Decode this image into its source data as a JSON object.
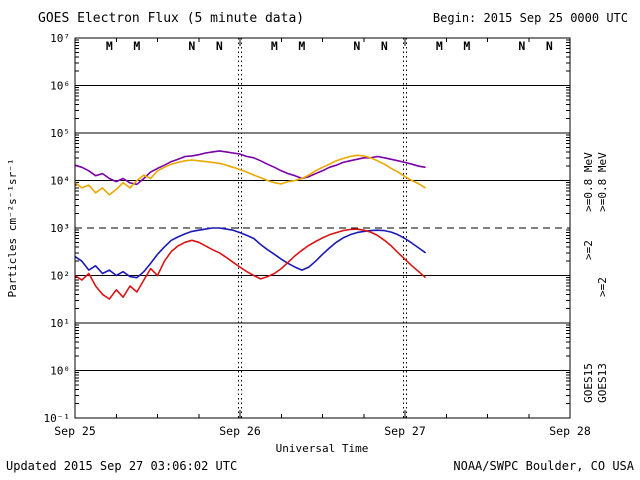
{
  "header": {
    "title": "GOES Electron Flux (5 minute data)",
    "begin_label": "Begin: 2015 Sep 25 0000 UTC"
  },
  "footer": {
    "updated": "Updated 2015 Sep 27 03:06:02 UTC",
    "source": "NOAA/SWPC Boulder, CO USA"
  },
  "chart_data": {
    "type": "line",
    "title": "GOES Electron Flux (5 minute data)",
    "xlabel": "Universal Time",
    "ylabel": "Particles cm⁻²s⁻¹sr⁻¹",
    "y_scale": "log",
    "ylim": [
      0.1,
      10000000
    ],
    "x_range_hours": [
      0,
      72
    ],
    "x_tick_hours": [
      0,
      24,
      48,
      72
    ],
    "x_tick_labels": [
      "Sep 25",
      "Sep 26",
      "Sep 27",
      "Sep 28"
    ],
    "y_tick_exponents": [
      -1,
      0,
      1,
      2,
      3,
      4,
      5,
      6,
      7
    ],
    "y_tick_labels": [
      "10⁻¹",
      "10⁰",
      "10¹",
      "10²",
      "10³",
      "10⁴",
      "10⁵",
      "10⁶",
      "10⁷"
    ],
    "threshold_line": {
      "value": 1000,
      "style": "dashed"
    },
    "day_boundary_lines_hours": [
      24,
      48
    ],
    "hours": [
      0,
      1,
      2,
      3,
      4,
      5,
      6,
      7,
      8,
      9,
      10,
      11,
      12,
      13,
      14,
      15,
      16,
      17,
      18,
      19,
      20,
      21,
      22,
      23,
      24,
      25,
      26,
      27,
      28,
      29,
      30,
      31,
      32,
      33,
      34,
      35,
      36,
      37,
      38,
      39,
      40,
      41,
      42,
      43,
      44,
      45,
      46,
      47,
      48,
      49,
      50,
      51
    ],
    "series": [
      {
        "name": "GOES15 >=0.8 MeV",
        "color": "#7a00a8",
        "values": [
          21000,
          19000,
          16000,
          12600,
          14000,
          11000,
          9500,
          11000,
          8900,
          8300,
          11000,
          15000,
          18000,
          21000,
          25000,
          28000,
          32000,
          33000,
          35000,
          38000,
          40000,
          42000,
          40000,
          38000,
          36000,
          32000,
          30000,
          26000,
          22000,
          19000,
          16000,
          14000,
          12600,
          11000,
          12000,
          14000,
          16000,
          19000,
          21000,
          24000,
          26000,
          28000,
          30000,
          30000,
          32000,
          30000,
          28000,
          26000,
          24000,
          22000,
          20000,
          19000
        ]
      },
      {
        "name": "GOES13 >=0.8 MeV",
        "color": "#eaa800",
        "values": [
          9000,
          7000,
          8000,
          5500,
          7000,
          5000,
          6500,
          9000,
          7000,
          10000,
          13000,
          11000,
          16000,
          19000,
          22000,
          24000,
          26000,
          27000,
          26000,
          25000,
          24000,
          23000,
          21000,
          19000,
          17000,
          15000,
          13000,
          11500,
          10000,
          9000,
          8500,
          9500,
          10000,
          11000,
          13000,
          16000,
          19000,
          22000,
          26000,
          29000,
          32000,
          34000,
          33000,
          30000,
          26000,
          22000,
          18000,
          15000,
          12000,
          10000,
          8500,
          7000
        ]
      },
      {
        "name": "GOES15 >=2 MeV",
        "color": "#1a1ab8",
        "values": [
          250,
          200,
          130,
          160,
          110,
          130,
          100,
          120,
          95,
          90,
          120,
          180,
          280,
          400,
          550,
          650,
          750,
          850,
          900,
          950,
          1000,
          1000,
          950,
          900,
          800,
          700,
          600,
          450,
          350,
          280,
          220,
          180,
          150,
          130,
          150,
          200,
          280,
          380,
          500,
          620,
          720,
          800,
          850,
          880,
          900,
          880,
          820,
          720,
          600,
          480,
          380,
          300
        ]
      },
      {
        "name": "GOES13 >=2 MeV",
        "color": "#d81414",
        "values": [
          100,
          80,
          110,
          60,
          40,
          32,
          50,
          35,
          60,
          45,
          80,
          140,
          100,
          200,
          320,
          420,
          500,
          550,
          500,
          420,
          350,
          300,
          240,
          190,
          150,
          120,
          100,
          85,
          95,
          110,
          140,
          190,
          260,
          340,
          430,
          520,
          620,
          720,
          800,
          880,
          930,
          950,
          900,
          820,
          700,
          550,
          420,
          300,
          220,
          160,
          120,
          90
        ]
      }
    ],
    "satellite_markers": [
      {
        "hour": 5,
        "label": "M",
        "color": "#bb2222"
      },
      {
        "hour": 9,
        "label": "M",
        "color": "#1a1a99"
      },
      {
        "hour": 17,
        "label": "N",
        "color": "#bb2222"
      },
      {
        "hour": 21,
        "label": "N",
        "color": "#1a1a99"
      },
      {
        "hour": 29,
        "label": "M",
        "color": "#bb2222"
      },
      {
        "hour": 33,
        "label": "M",
        "color": "#1a1a99"
      },
      {
        "hour": 41,
        "label": "N",
        "color": "#bb2222"
      },
      {
        "hour": 45,
        "label": "N",
        "color": "#1a1a99"
      },
      {
        "hour": 53,
        "label": "M",
        "color": "#bb2222"
      },
      {
        "hour": 57,
        "label": "M",
        "color": "#1a1a99"
      },
      {
        "hour": 65,
        "label": "N",
        "color": "#bb2222"
      },
      {
        "hour": 69,
        "label": "N",
        "color": "#1a1a99"
      }
    ],
    "right_labels": [
      {
        "text": ">=0.8 MeV",
        "color": "#7a00a8",
        "col": 0,
        "row": 0
      },
      {
        "text": ">=0.8 MeV",
        "color": "#eaa800",
        "col": 1,
        "row": 0
      },
      {
        "text": ">=2",
        "color": "#1a1ab8",
        "col": 0,
        "row": 1
      },
      {
        "text": ">=2",
        "color": "#d81414",
        "col": 1,
        "row": 1
      },
      {
        "text": "GOES15",
        "color": "#000000",
        "col": 0,
        "row": 2
      },
      {
        "text": "GOES13",
        "color": "#000000",
        "col": 1,
        "row": 2
      }
    ]
  }
}
